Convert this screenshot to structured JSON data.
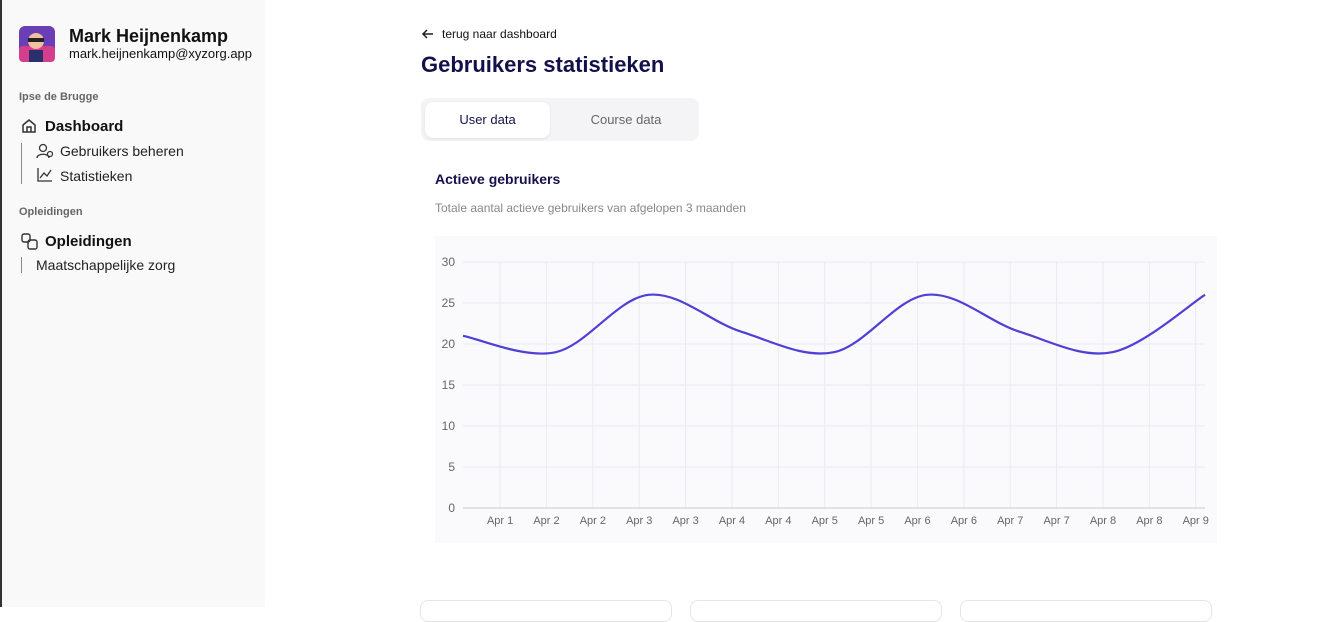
{
  "sidebar": {
    "user": {
      "name": "Mark Heijnenkamp",
      "email": "mark.heijnenkamp@xyzorg.app"
    },
    "sections": [
      {
        "heading": "Ipse de Brugge",
        "title": "Dashboard",
        "items": [
          "Gebruikers beheren",
          "Statistieken"
        ]
      },
      {
        "heading": "Opleidingen",
        "title": "Opleidingen",
        "items": [
          "Maatschappelijke zorg"
        ]
      }
    ]
  },
  "back_link": "terug naar dashboard",
  "page_title": "Gebruikers statistieken",
  "tabs": [
    "User data",
    "Course data"
  ],
  "card": {
    "title": "Actieve gebruikers",
    "subtitle": "Totale aantal actieve gebruikers van afgelopen 3 maanden"
  },
  "chart_data": {
    "type": "line",
    "x": [
      1,
      2,
      3,
      4,
      5,
      6,
      7,
      8,
      9
    ],
    "values": [
      21,
      19,
      26,
      21.5,
      19,
      26,
      21.5,
      19,
      26
    ],
    "color": "#4f3fd6",
    "xlim": [
      1,
      9
    ],
    "xticks": [
      {
        "value": 1.4,
        "label": "Apr 1"
      },
      {
        "value": 1.9,
        "label": "Apr 2"
      },
      {
        "value": 2.4,
        "label": "Apr 2"
      },
      {
        "value": 2.9,
        "label": "Apr 3"
      },
      {
        "value": 3.4,
        "label": "Apr 3"
      },
      {
        "value": 3.9,
        "label": "Apr 4"
      },
      {
        "value": 4.4,
        "label": "Apr 4"
      },
      {
        "value": 4.9,
        "label": "Apr 5"
      },
      {
        "value": 5.4,
        "label": "Apr 5"
      },
      {
        "value": 5.9,
        "label": "Apr 6"
      },
      {
        "value": 6.4,
        "label": "Apr 6"
      },
      {
        "value": 6.9,
        "label": "Apr 7"
      },
      {
        "value": 7.4,
        "label": "Apr 7"
      },
      {
        "value": 7.9,
        "label": "Apr 8"
      },
      {
        "value": 8.4,
        "label": "Apr 8"
      },
      {
        "value": 8.9,
        "label": "Apr 9"
      }
    ],
    "ylim": [
      0,
      30
    ],
    "yticks": [
      0,
      5,
      10,
      15,
      20,
      25,
      30
    ],
    "grid": true
  }
}
